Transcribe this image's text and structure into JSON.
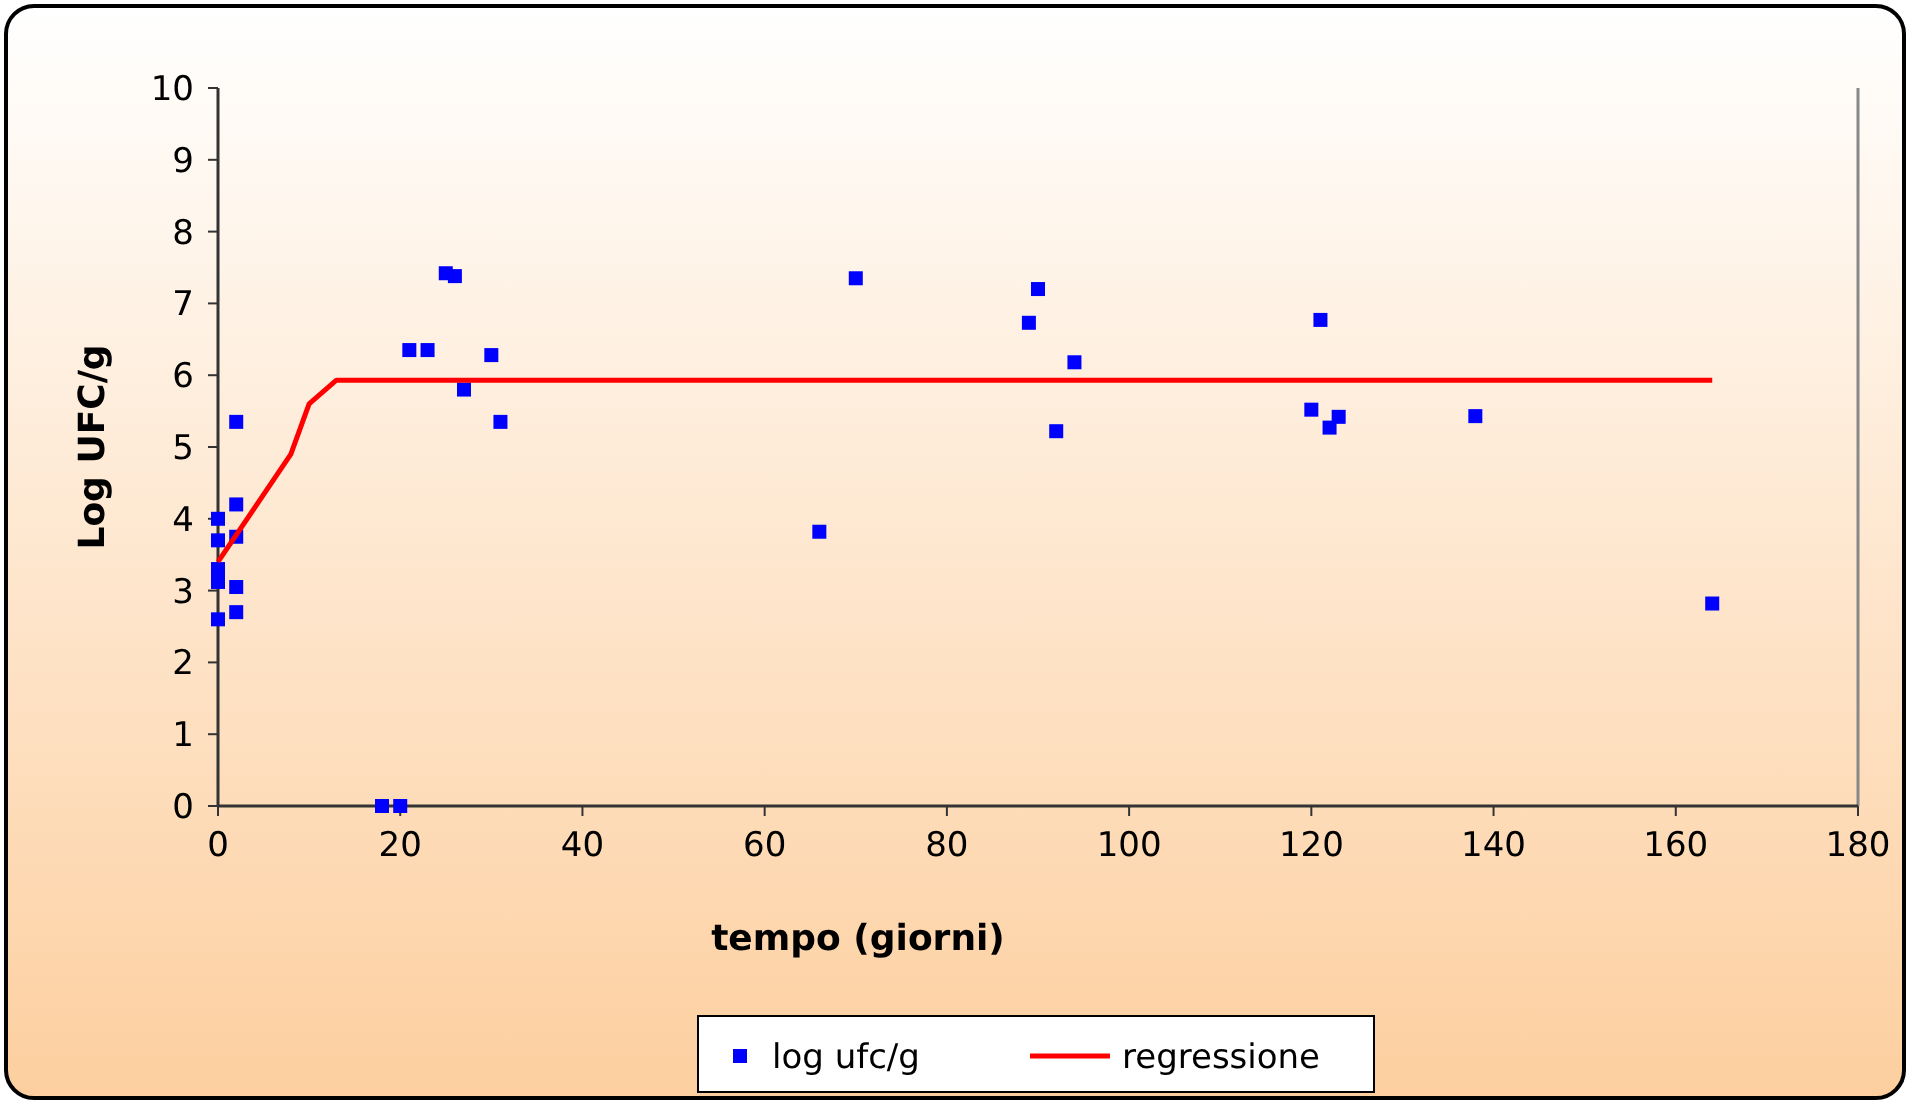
{
  "chart_data": {
    "type": "scatter",
    "xlabel": "tempo (giorni)",
    "ylabel": "Log UFC/g",
    "xlim": [
      0,
      180
    ],
    "ylim": [
      0,
      10
    ],
    "xticks": [
      0,
      20,
      40,
      60,
      80,
      100,
      120,
      140,
      160,
      180
    ],
    "yticks": [
      0,
      1,
      2,
      3,
      4,
      5,
      6,
      7,
      8,
      9,
      10
    ],
    "grid": false,
    "legend": "bottom",
    "marker": "square",
    "series": [
      {
        "name": "log ufc/g",
        "color": "#0000ff",
        "x": [
          0,
          0,
          0,
          0,
          0,
          2,
          2,
          2,
          2,
          2,
          18,
          20,
          21,
          23,
          25,
          26,
          27,
          30,
          31,
          66,
          70,
          89,
          90,
          92,
          94,
          120,
          121,
          122,
          123,
          138,
          164
        ],
        "values": [
          4.0,
          3.7,
          3.3,
          3.12,
          2.6,
          5.35,
          4.2,
          3.75,
          3.05,
          2.7,
          0,
          0,
          6.35,
          6.35,
          7.42,
          7.38,
          5.8,
          6.28,
          5.35,
          3.82,
          7.35,
          6.73,
          7.2,
          5.22,
          6.18,
          5.52,
          6.77,
          5.27,
          5.42,
          5.43,
          2.82
        ]
      },
      {
        "name": "regressione",
        "type": "line",
        "color": "#ff0000",
        "line_style": "solid",
        "marker": "none",
        "x": [
          0,
          8,
          10,
          13,
          164
        ],
        "values": [
          3.4,
          4.9,
          5.6,
          5.93,
          5.93
        ]
      }
    ]
  }
}
